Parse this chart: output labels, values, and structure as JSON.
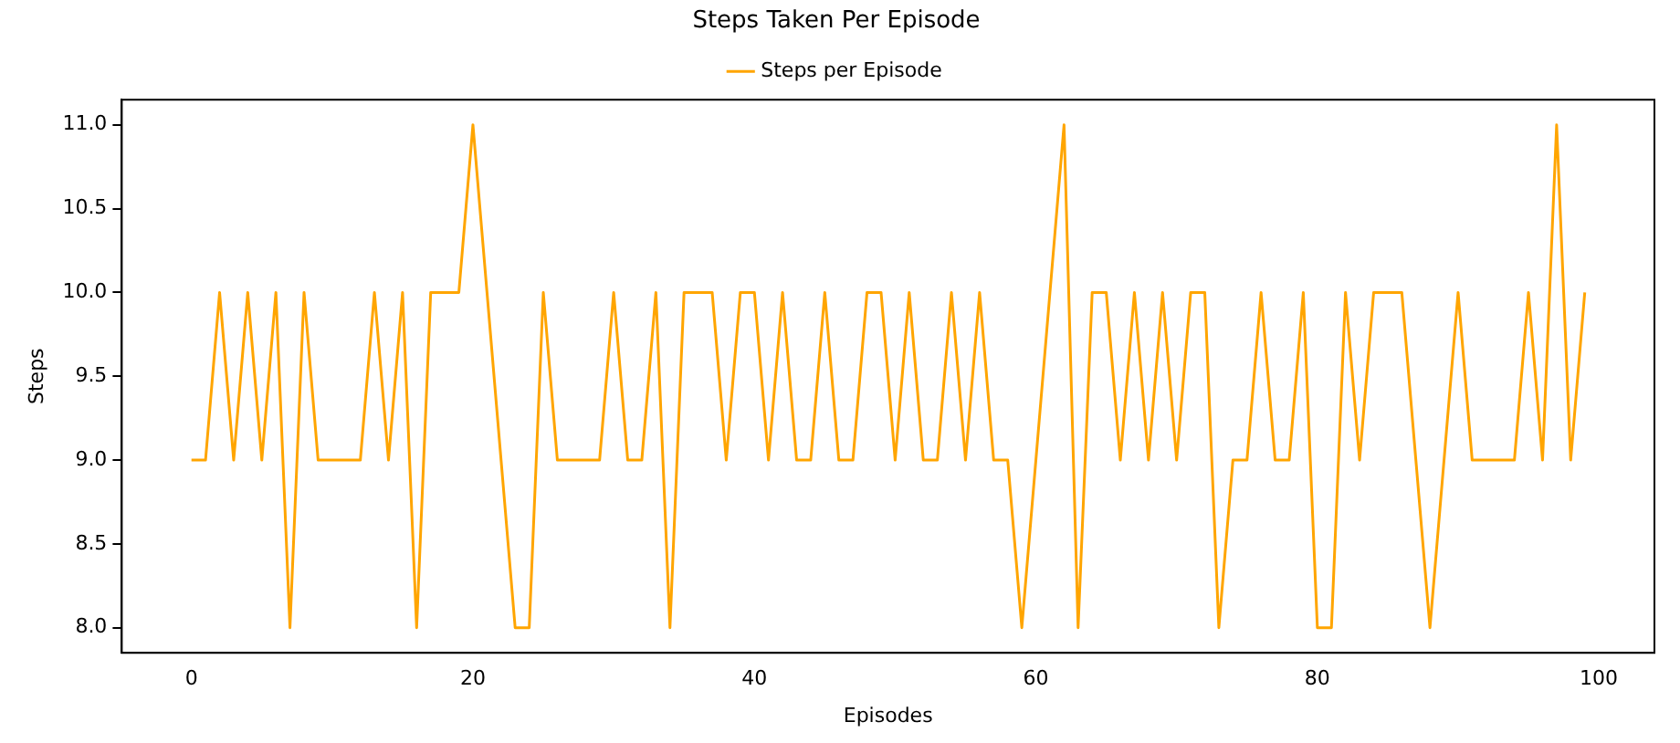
{
  "chart_data": {
    "type": "line",
    "title": "Steps Taken Per Episode",
    "xlabel": "Episodes",
    "ylabel": "Steps",
    "x": [
      0,
      1,
      2,
      3,
      4,
      5,
      6,
      7,
      8,
      9,
      10,
      11,
      12,
      13,
      14,
      15,
      16,
      17,
      18,
      19,
      20,
      21,
      22,
      23,
      24,
      25,
      26,
      27,
      28,
      29,
      30,
      31,
      32,
      33,
      34,
      35,
      36,
      37,
      38,
      39,
      40,
      41,
      42,
      43,
      44,
      45,
      46,
      47,
      48,
      49,
      50,
      51,
      52,
      53,
      54,
      55,
      56,
      57,
      58,
      59,
      60,
      61,
      62,
      63,
      64,
      65,
      66,
      67,
      68,
      69,
      70,
      71,
      72,
      73,
      74,
      75,
      76,
      77,
      78,
      79,
      80,
      81,
      82,
      83,
      84,
      85,
      86,
      87,
      88,
      89,
      90,
      91,
      92,
      93,
      94,
      95,
      96,
      97,
      98,
      99
    ],
    "series": [
      {
        "name": "Steps per Episode",
        "color": "#ffa500",
        "values": [
          9,
          9,
          10,
          9,
          10,
          9,
          10,
          8,
          10,
          9,
          9,
          9,
          9,
          10,
          9,
          10,
          8,
          10,
          10,
          10,
          11,
          10,
          9,
          8,
          8,
          10,
          9,
          9,
          9,
          9,
          10,
          9,
          9,
          10,
          8,
          10,
          10,
          10,
          9,
          10,
          10,
          9,
          10,
          9,
          9,
          10,
          9,
          9,
          10,
          10,
          9,
          10,
          9,
          9,
          10,
          9,
          10,
          9,
          9,
          8,
          9,
          10,
          11,
          8,
          10,
          10,
          9,
          10,
          9,
          10,
          9,
          10,
          10,
          8,
          9,
          9,
          10,
          9,
          9,
          10,
          8,
          8,
          10,
          9,
          10,
          10,
          10,
          9,
          8,
          9,
          10,
          9,
          9,
          9,
          9,
          10,
          9,
          11,
          9,
          10
        ]
      }
    ],
    "xlim": [
      -4.95,
      103.95
    ],
    "xticks": [
      0,
      20,
      40,
      60,
      80,
      100
    ],
    "ylim": [
      7.85,
      11.15
    ],
    "yticks": [
      {
        "value": 8,
        "label": "8.0"
      },
      {
        "value": 8.5,
        "label": "8.5"
      },
      {
        "value": 9,
        "label": "9.0"
      },
      {
        "value": 9.5,
        "label": "9.5"
      },
      {
        "value": 10,
        "label": "10.0"
      },
      {
        "value": 10.5,
        "label": "10.5"
      },
      {
        "value": 11,
        "label": "11.0"
      }
    ],
    "legend": "top",
    "grid": false,
    "marker": "none",
    "line_style": "solid"
  }
}
